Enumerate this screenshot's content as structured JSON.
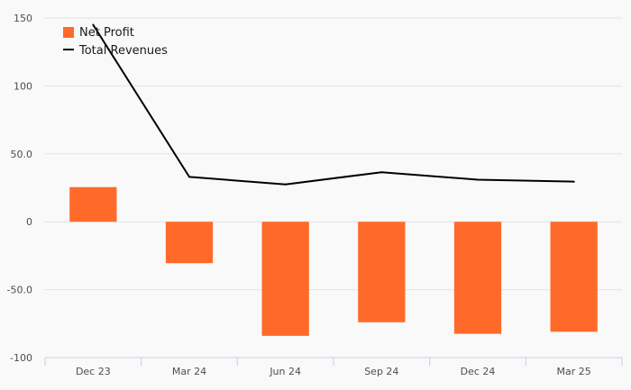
{
  "chart_data": {
    "type": "bar",
    "categories": [
      "Dec 23",
      "Mar 24",
      "Jun 24",
      "Sep 24",
      "Dec 24",
      "Mar 25"
    ],
    "series": [
      {
        "name": "Net Profit",
        "kind": "bar",
        "color": "#ff6a2b",
        "values": [
          25.5,
          -30.5,
          -84,
          -74,
          -82.5,
          -81
        ]
      },
      {
        "name": "Total Revenues",
        "kind": "line",
        "color": "#000000",
        "values": [
          145,
          33,
          27.5,
          36.5,
          31,
          29.5
        ]
      }
    ],
    "ylim": [
      -100,
      150
    ],
    "yticks": [
      {
        "value": 150,
        "label": "150"
      },
      {
        "value": 100,
        "label": "100"
      },
      {
        "value": 50,
        "label": "50.0"
      },
      {
        "value": 0,
        "label": "0"
      },
      {
        "value": -50,
        "label": "-50.0"
      },
      {
        "value": -100,
        "label": "-100"
      }
    ],
    "grid": true,
    "legend_position": "top-left",
    "title": "",
    "xlabel": "",
    "ylabel": ""
  }
}
